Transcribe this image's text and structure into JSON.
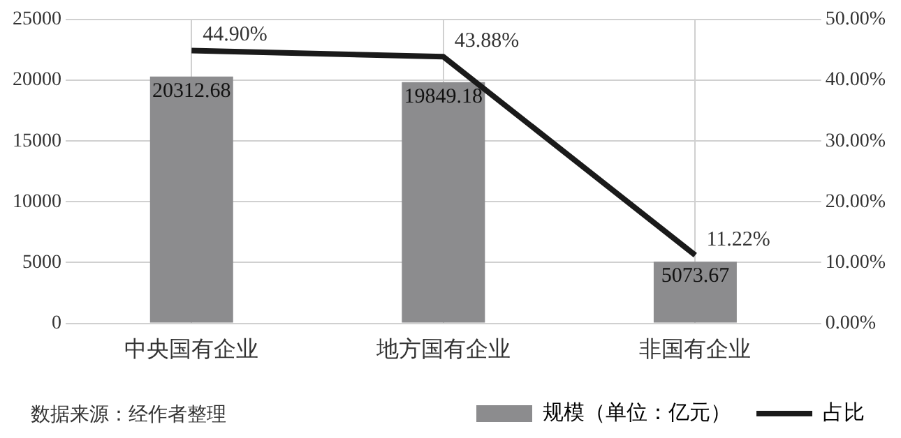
{
  "chart_data": {
    "type": "bar",
    "categories": [
      "中央国有企业",
      "地方国有企业",
      "非国有企业"
    ],
    "series": [
      {
        "name": "规模（单位：亿元）",
        "color": "#8c8c8e",
        "values": [
          20312.68,
          19849.18,
          5073.67
        ],
        "value_labels": [
          "20312.68",
          "19849.18",
          "5073.67"
        ]
      },
      {
        "name": "占比",
        "type": "line",
        "axis": "y2",
        "color": "#1a1a1a",
        "values": [
          44.9,
          43.88,
          11.22
        ],
        "value_labels": [
          "44.90%",
          "43.88%",
          "11.22%"
        ]
      }
    ],
    "ylim": [
      0,
      25000
    ],
    "yticks": [
      0,
      5000,
      10000,
      15000,
      20000,
      25000
    ],
    "y2lim": [
      0,
      50
    ],
    "y2ticks": [
      {
        "value": 0,
        "label": "0.00%"
      },
      {
        "value": 10,
        "label": "10.00%"
      },
      {
        "value": 20,
        "label": "20.00%"
      },
      {
        "value": 30,
        "label": "30.00%"
      },
      {
        "value": 40,
        "label": "40.00%"
      },
      {
        "value": 50,
        "label": "50.00%"
      }
    ],
    "grid": true,
    "legend": "bottom right",
    "marker": "none",
    "line_style": "solid",
    "annotations": [
      "数据来源：经作者整理"
    ]
  }
}
